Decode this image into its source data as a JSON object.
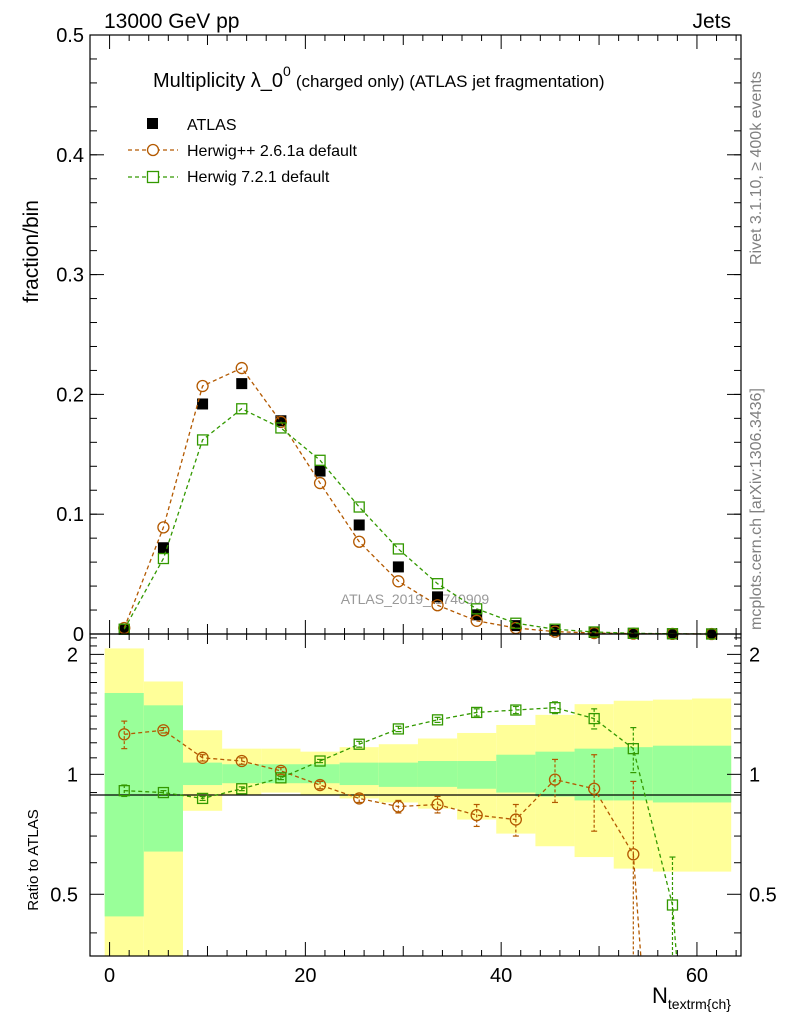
{
  "header": {
    "left": "13000 GeV pp",
    "right": "Jets"
  },
  "side_labels": {
    "rivet": "Rivet 3.1.10, ≥ 400k events",
    "mcplots": "mcplots.cern.ch [arXiv:1306.3436]"
  },
  "watermark": "ATLAS_2019_I1740909",
  "chart_data": [
    {
      "type": "scatter",
      "panel": "main",
      "title_main": "Multiplicity λ_0",
      "title_sup": "0",
      "title_rest": "(charged only) (ATLAS jet fragmentation)",
      "ylabel": "fraction/bin",
      "xlabel_main": "N",
      "xlabel_sub": "textrm{ch}",
      "xlim": [
        -2,
        64.5
      ],
      "ylim": [
        0,
        0.5
      ],
      "yticks": [
        0,
        0.1,
        0.2,
        0.3,
        0.4,
        0.5
      ],
      "yticklabels": [
        "0",
        "0.1",
        "0.2",
        "0.3",
        "0.4",
        "0.5"
      ],
      "x": [
        1.5,
        5.5,
        9.5,
        13.5,
        17.5,
        21.5,
        25.5,
        29.5,
        33.5,
        37.5,
        41.5,
        45.5,
        49.5,
        53.5,
        57.5,
        61.5
      ],
      "series": [
        {
          "name": "ATLAS",
          "color": "#000000",
          "marker": "square-filled",
          "values": [
            0.004,
            0.072,
            0.192,
            0.209,
            0.178,
            0.136,
            0.091,
            0.056,
            0.031,
            0.016,
            0.007,
            0.003,
            0.0013,
            0.0005,
            0.0002,
            0.0001
          ]
        },
        {
          "name": "Herwig++ 2.6.1a default",
          "color": "#b35900",
          "marker": "circle-open",
          "values": [
            0.005,
            0.089,
            0.207,
            0.222,
            0.177,
            0.126,
            0.077,
            0.044,
            0.024,
            0.011,
            0.005,
            0.002,
            0.0008,
            0.0003,
            0.0001,
            0.0
          ]
        },
        {
          "name": "Herwig 7.2.1 default",
          "color": "#339900",
          "marker": "square-open",
          "values": [
            0.004,
            0.063,
            0.162,
            0.188,
            0.172,
            0.145,
            0.106,
            0.071,
            0.042,
            0.021,
            0.009,
            0.004,
            0.0017,
            0.0006,
            0.0002,
            0.0
          ]
        }
      ]
    },
    {
      "type": "scatter",
      "panel": "ratio",
      "ylabel": "Ratio to ATLAS",
      "ylim": [
        0.35,
        2.25
      ],
      "yticklabels": [
        "0.5",
        "1",
        "2"
      ],
      "yticks": [
        0.5,
        1,
        2
      ],
      "xticks": [
        0,
        20,
        40,
        60
      ],
      "xticklabels": [
        "0",
        "20",
        "40",
        "60"
      ],
      "bands": {
        "edges": [
          -0.5,
          3.5,
          7.5,
          11.5,
          15.5,
          19.5,
          23.5,
          27.5,
          31.5,
          35.5,
          39.5,
          43.5,
          47.5,
          51.5,
          55.5,
          59.5,
          63.5
        ],
        "green_lo": [
          0.44,
          0.64,
          0.94,
          0.95,
          0.95,
          0.95,
          0.94,
          0.93,
          0.93,
          0.92,
          0.9,
          0.88,
          0.86,
          0.86,
          0.85,
          0.85
        ],
        "green_hi": [
          1.6,
          1.49,
          1.07,
          1.06,
          1.06,
          1.06,
          1.07,
          1.07,
          1.08,
          1.08,
          1.12,
          1.14,
          1.16,
          1.17,
          1.18,
          1.18
        ],
        "yellow_lo": [
          0.35,
          0.35,
          0.81,
          0.89,
          0.9,
          0.89,
          0.87,
          0.85,
          0.82,
          0.77,
          0.71,
          0.66,
          0.62,
          0.58,
          0.57,
          0.57
        ],
        "yellow_hi": [
          2.07,
          1.71,
          1.29,
          1.16,
          1.16,
          1.14,
          1.17,
          1.19,
          1.23,
          1.27,
          1.33,
          1.41,
          1.5,
          1.53,
          1.54,
          1.55
        ]
      },
      "series": [
        {
          "name": "Herwig++ 2.6.1a default",
          "color": "#b35900",
          "x": [
            1.5,
            5.5,
            9.5,
            13.5,
            17.5,
            21.5,
            25.5,
            29.5,
            33.5,
            37.5,
            41.5,
            45.5,
            49.5,
            53.5
          ],
          "values": [
            1.26,
            1.29,
            1.1,
            1.08,
            1.02,
            0.94,
            0.87,
            0.83,
            0.84,
            0.79,
            0.77,
            0.97,
            0.92,
            0.63
          ],
          "err": [
            0.1,
            0.02,
            0.02,
            0.02,
            0.02,
            0.02,
            0.02,
            0.03,
            0.04,
            0.05,
            0.07,
            0.12,
            0.2,
            0.33
          ]
        },
        {
          "name": "Herwig 7.2.1 default",
          "color": "#339900",
          "x": [
            1.5,
            5.5,
            9.5,
            13.5,
            17.5,
            21.5,
            25.5,
            29.5,
            33.5,
            37.5,
            41.5,
            45.5,
            49.5,
            53.5,
            57.5
          ],
          "values": [
            0.91,
            0.9,
            0.87,
            0.92,
            0.98,
            1.08,
            1.19,
            1.3,
            1.37,
            1.43,
            1.45,
            1.47,
            1.38,
            1.16,
            0.47
          ],
          "err": [
            0.03,
            0.01,
            0.01,
            0.01,
            0.01,
            0.01,
            0.02,
            0.02,
            0.02,
            0.03,
            0.03,
            0.05,
            0.08,
            0.15,
            0.15
          ]
        }
      ]
    }
  ]
}
